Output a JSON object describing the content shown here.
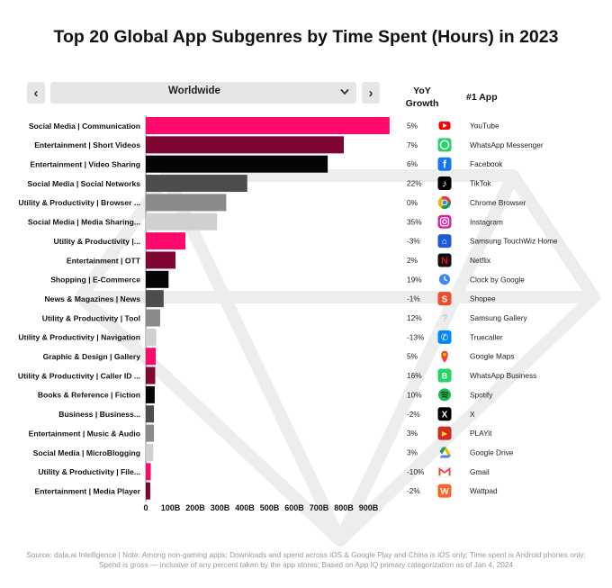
{
  "title": "Top 20 Global App Subgenres by Time Spent (Hours) in 2023",
  "filter": {
    "prev_label": "‹",
    "next_label": "›",
    "region": "Worldwide",
    "chevron": "⌄"
  },
  "columns": {
    "yoy_line1": "YoY",
    "yoy_line2": "Growth",
    "app": "#1 App"
  },
  "footer": {
    "line1": "Source: data.ai Intelligence | Note: Among non-gaming apps; Downloads and spend  across iOS & Google Play and China is iOS only; Time spent is Android phones only;",
    "line2": "Spend is gross — inclusive of any percent taken by the app stores; Based on App IQ primary categorization as of Jan 4, 2024"
  },
  "chart_data": {
    "type": "bar",
    "orientation": "horizontal",
    "categories": [
      "Social Media | Communication",
      "Entertainment | Short Videos",
      "Entertainment | Video Sharing",
      "Social Media | Social Networks",
      "Utility & Productivity | Browser ...",
      "Social Media | Media Sharing...",
      "Utility & Productivity |...",
      "Entertainment | OTT",
      "Shopping | E-Commerce",
      "News & Magazines | News",
      "Utility & Productivity | Tool",
      "Utility & Productivity | Navigation",
      "Graphic & Design | Gallery",
      "Utility & Productivity | Caller ID ...",
      "Books & Reference | Fiction",
      "Business | Business...",
      "Entertainment | Music & Audio",
      "Social Media | MicroBlogging",
      "Utility & Productivity | File...",
      "Entertainment | Media Player"
    ],
    "values": [
      985,
      800,
      735,
      410,
      325,
      288,
      160,
      120,
      92,
      72,
      58,
      42,
      40,
      38,
      36,
      33,
      33,
      30,
      20,
      18
    ],
    "bar_colors": [
      "#ff0a6c",
      "#7f0533",
      "#050505",
      "#4d4d4d",
      "#8a8a8a",
      "#d0d0d0",
      "#ff0a6c",
      "#7f0533",
      "#050505",
      "#4d4d4d",
      "#8a8a8a",
      "#d0d0d0",
      "#ff0a6c",
      "#7f0533",
      "#050505",
      "#4d4d4d",
      "#8a8a8a",
      "#d0d0d0",
      "#ff0a6c",
      "#7f0533"
    ],
    "x_ticks": [
      0,
      100,
      200,
      300,
      400,
      500,
      600,
      700,
      800,
      900
    ],
    "x_tick_labels": [
      "0",
      "100B",
      "200B",
      "300B",
      "400B",
      "500B",
      "600B",
      "700B",
      "800B",
      "900B"
    ],
    "xlim": [
      0,
      1000
    ],
    "xlabel": "",
    "ylabel": "",
    "yoy_growth": [
      "5%",
      "7%",
      "6%",
      "22%",
      "0%",
      "35%",
      "-3%",
      "2%",
      "19%",
      "-1%",
      "12%",
      "-13%",
      "5%",
      "16%",
      "10%",
      "-2%",
      "3%",
      "3%",
      "-10%",
      "-2%"
    ],
    "top_app": [
      "YouTube",
      "WhatsApp Messenger",
      "Facebook",
      "TikTok",
      "Chrome Browser",
      "Instagram",
      "Samsung TouchWiz Home",
      "Netflix",
      "Clock by Google",
      "Shopee",
      "Samsung Gallery",
      "Truecaller",
      "Google Maps",
      "WhatsApp Business",
      "Spotify",
      "X",
      "PLAYit",
      "Google Drive",
      "Gmail",
      "Wattpad"
    ],
    "top_app_icons": [
      "youtube-icon",
      "whatsapp-icon",
      "facebook-icon",
      "tiktok-icon",
      "chrome-icon",
      "instagram-icon",
      "samsung-home-icon",
      "netflix-icon",
      "google-clock-icon",
      "shopee-icon",
      "samsung-gallery-icon",
      "truecaller-icon",
      "google-maps-icon",
      "whatsapp-business-icon",
      "spotify-icon",
      "x-icon",
      "playit-icon",
      "google-drive-icon",
      "gmail-icon",
      "wattpad-icon"
    ],
    "grid": false,
    "legend": "none"
  }
}
